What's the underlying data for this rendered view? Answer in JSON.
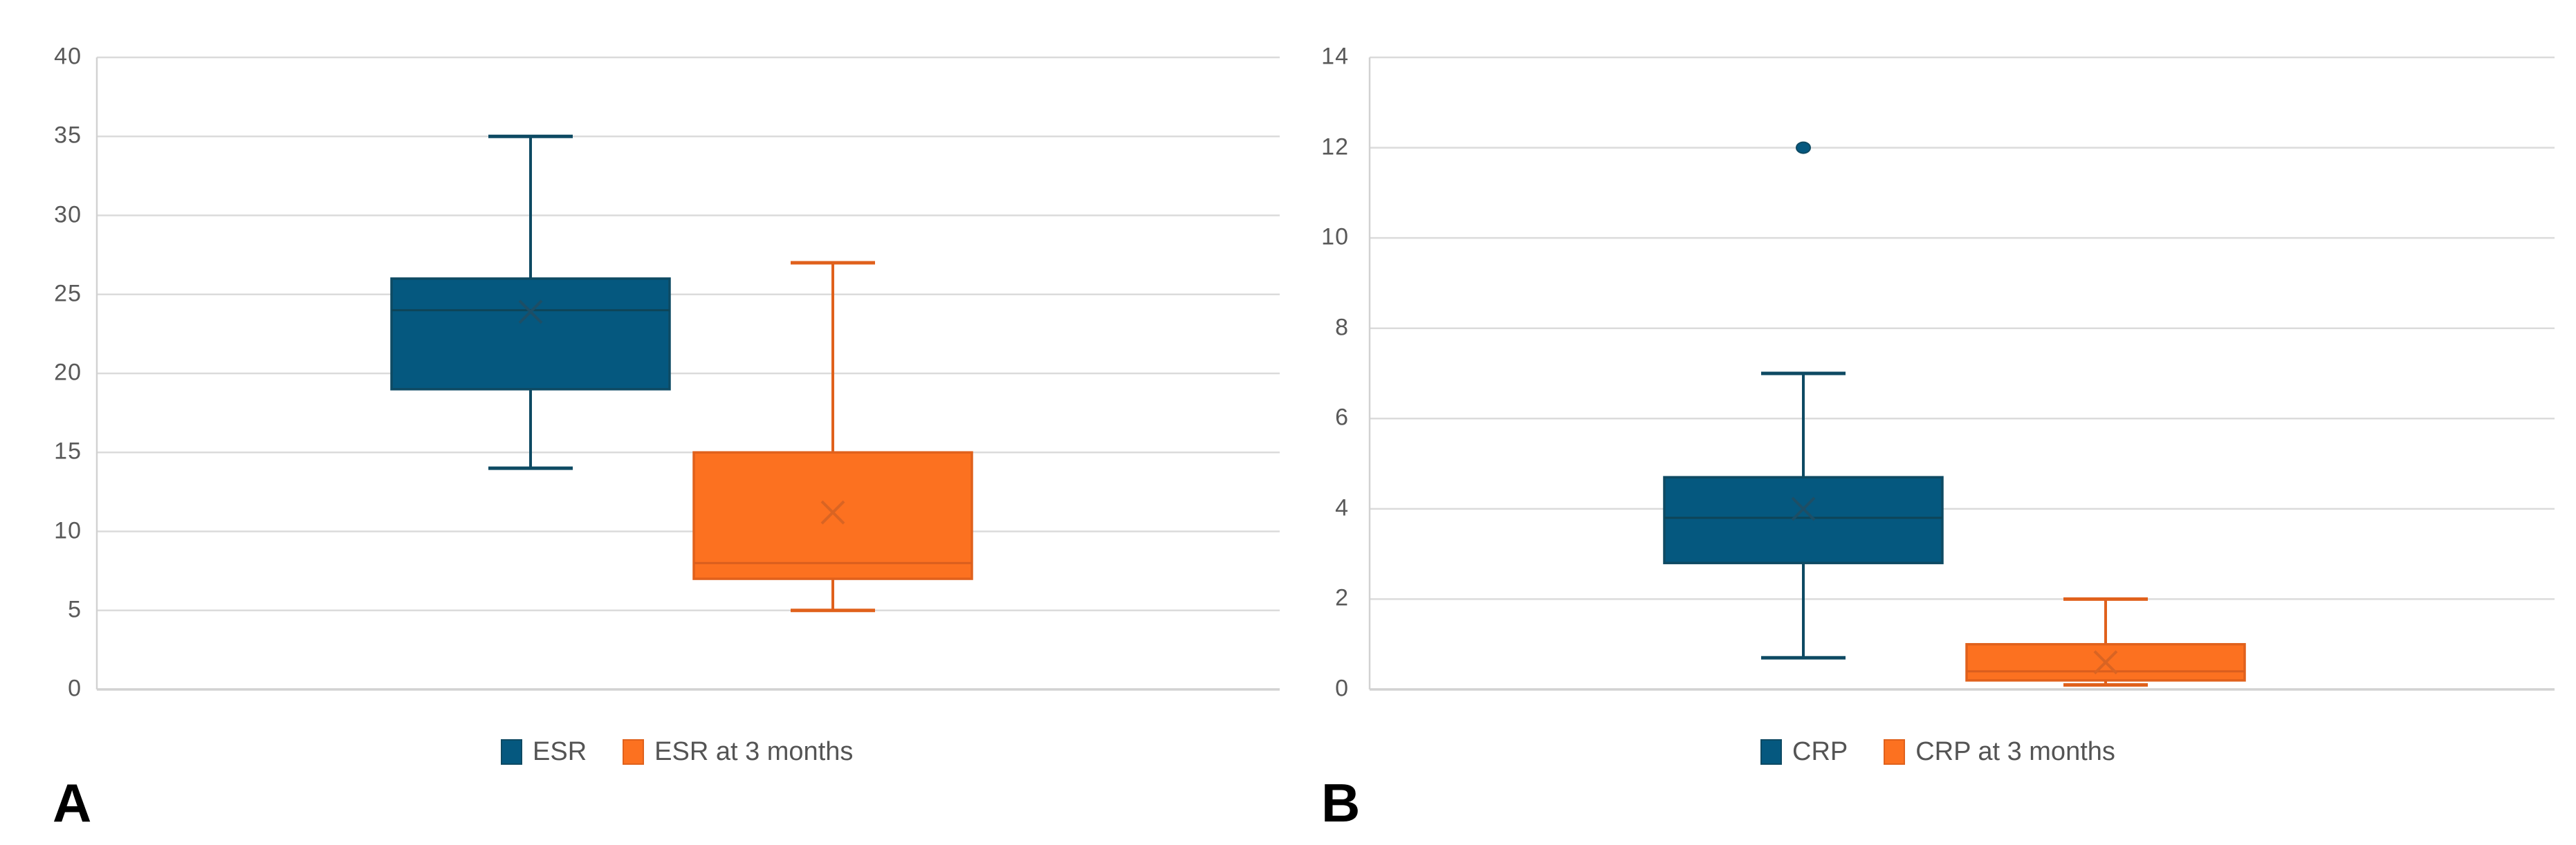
{
  "figure": {
    "panels": [
      {
        "label": "A"
      },
      {
        "label": "B"
      }
    ]
  },
  "colors": {
    "blue_fill": "#05587F",
    "blue_stroke": "#0E4A63",
    "blue_median": "#0E4558",
    "blue_mean": "#1D4E66",
    "orange_fill": "#FC7120",
    "orange_stroke": "#E0611C",
    "orange_median": "#D95E1E",
    "orange_mean": "#D96423",
    "gridline": "#DBDBDB",
    "axis_line": "#D2D2D2",
    "tick_text": "#595959",
    "legend_text": "#545454",
    "panel_label_text": "#000000"
  },
  "chart_data": [
    {
      "type": "box",
      "panel_label": "A",
      "title": "",
      "xlabel": "",
      "ylabel": "",
      "ylim": [
        0,
        40
      ],
      "y_step": 5,
      "y_ticks": [
        "40",
        "35",
        "30",
        "25",
        "20",
        "15",
        "10",
        "5",
        "0"
      ],
      "grid": true,
      "legend_position": "bottom",
      "series": [
        {
          "name": "ESR",
          "color_key": "blue",
          "min": 14,
          "q1": 19,
          "median": 24,
          "q3": 26,
          "max": 35,
          "mean": 23.9,
          "outliers": []
        },
        {
          "name": "ESR at 3 months",
          "color_key": "orange",
          "min": 5,
          "q1": 7,
          "median": 8,
          "q3": 15,
          "max": 27,
          "mean": 11.2,
          "outliers": []
        }
      ]
    },
    {
      "type": "box",
      "panel_label": "B",
      "title": "",
      "xlabel": "",
      "ylabel": "",
      "ylim": [
        0,
        14
      ],
      "y_step": 2,
      "y_ticks": [
        "14",
        "12",
        "10",
        "8",
        "6",
        "4",
        "2",
        "0"
      ],
      "grid": true,
      "legend_position": "bottom",
      "series": [
        {
          "name": "CRP",
          "color_key": "blue",
          "min": 0.7,
          "q1": 2.8,
          "median": 3.8,
          "q3": 4.7,
          "max": 7,
          "mean": 4.0,
          "outliers": [
            12
          ]
        },
        {
          "name": "CRP at 3 months",
          "color_key": "orange",
          "min": 0.1,
          "q1": 0.2,
          "median": 0.4,
          "q3": 1.0,
          "max": 2,
          "mean": 0.6,
          "outliers": []
        }
      ]
    }
  ]
}
